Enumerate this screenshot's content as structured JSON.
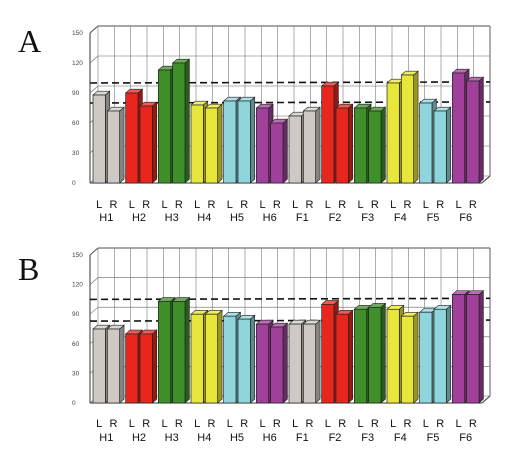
{
  "chart_data": [
    {
      "type": "bar",
      "panel_label": "A",
      "categories": [
        "H1",
        "H2",
        "H3",
        "H4",
        "H5",
        "H6",
        "F1",
        "F2",
        "F3",
        "F4",
        "F5",
        "F6"
      ],
      "bar_labels": [
        "L",
        "R"
      ],
      "yticks": [
        150,
        120,
        90,
        60,
        30,
        0
      ],
      "ylim": [
        0,
        150
      ],
      "grid": true,
      "series": [
        {
          "values": [
            88,
            90,
            113,
            78,
            82,
            75,
            67,
            97,
            75,
            100,
            80,
            110
          ]
        },
        {
          "values": [
            72,
            77,
            120,
            75,
            82,
            60,
            72,
            75,
            72,
            108,
            72,
            102
          ]
        }
      ],
      "colors": [
        "#cfc9c3",
        "#e8261d",
        "#3f8f2a",
        "#e8e63a",
        "#8fd6dc",
        "#a0409a",
        "#cfc9c3",
        "#e8261d",
        "#3f8f2a",
        "#e8e63a",
        "#8fd6dc",
        "#a0409a"
      ],
      "reference_lines": [
        100,
        80
      ]
    },
    {
      "type": "bar",
      "panel_label": "B",
      "categories": [
        "H1",
        "H2",
        "H3",
        "H4",
        "H5",
        "H6",
        "F1",
        "F2",
        "F3",
        "F4",
        "F5",
        "F6"
      ],
      "bar_labels": [
        "L",
        "R"
      ],
      "yticks": [
        150,
        120,
        90,
        60,
        30,
        0
      ],
      "ylim": [
        0,
        150
      ],
      "grid": true,
      "series": [
        {
          "values": [
            75,
            70,
            103,
            90,
            88,
            80,
            80,
            100,
            95,
            95,
            92,
            110
          ]
        },
        {
          "values": [
            75,
            70,
            103,
            90,
            85,
            77,
            80,
            90,
            97,
            88,
            95,
            110
          ]
        }
      ],
      "colors": [
        "#cfc9c3",
        "#e8261d",
        "#3f8f2a",
        "#e8e63a",
        "#8fd6dc",
        "#a0409a",
        "#cfc9c3",
        "#e8261d",
        "#3f8f2a",
        "#e8e63a",
        "#8fd6dc",
        "#a0409a"
      ],
      "reference_lines": [
        105,
        83
      ]
    }
  ]
}
